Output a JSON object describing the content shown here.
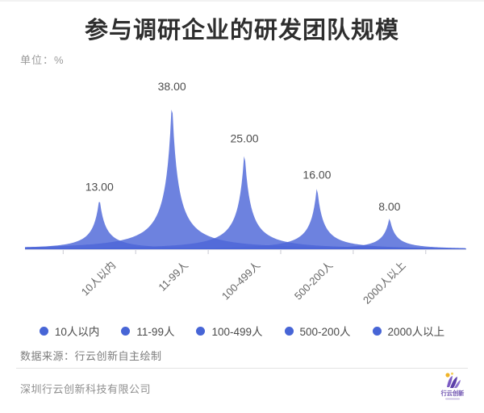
{
  "title": "参与调研企业的研发团队规模",
  "unit_label": "单位：%",
  "chart_data": {
    "type": "area",
    "title": "参与调研企业的研发团队规模",
    "ylabel": "单位：%",
    "categories": [
      "10人以内",
      "11-99人",
      "100-499人",
      "500-200人",
      "2000人以上"
    ],
    "values": [
      13,
      38,
      25,
      16,
      8
    ],
    "value_labels": [
      "13.00",
      "38.00",
      "25.00",
      "16.00",
      "8.00"
    ],
    "ylim": [
      0,
      40
    ],
    "grid": false,
    "legend_position": "bottom",
    "series_color": "#4d66d8",
    "fill_opacity": 0.82,
    "axis_color": "#d9dae3",
    "tick_color": "#c9c9d2",
    "value_label_color": "#4d4d4d"
  },
  "legend": {
    "dot_color": "#4765d6"
  },
  "source_note": "数据来源：行云创新自主绘制",
  "footer": {
    "company": "深圳行云创新科技有限公司",
    "logo_text": "行云创新"
  },
  "colors": {
    "title": "#2e2e2e",
    "unit": "#9a9a9a",
    "logo_purple": "#6b4fae",
    "logo_yellow": "#f0b429"
  }
}
